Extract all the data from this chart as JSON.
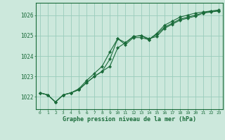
{
  "title": "Graphe pression niveau de la mer (hPa)",
  "background_color": "#cce8dc",
  "plot_bg_color": "#cce8dc",
  "grid_color": "#99ccbb",
  "line_color": "#1a6b3a",
  "xlim": [
    -0.5,
    23.5
  ],
  "ylim": [
    1021.4,
    1026.6
  ],
  "yticks": [
    1022,
    1023,
    1024,
    1025,
    1026
  ],
  "xticks": [
    0,
    1,
    2,
    3,
    4,
    5,
    6,
    7,
    8,
    9,
    10,
    11,
    12,
    13,
    14,
    15,
    16,
    17,
    18,
    19,
    20,
    21,
    22,
    23
  ],
  "series": [
    [
      1022.2,
      1022.1,
      1021.75,
      1022.1,
      1022.2,
      1022.35,
      1022.7,
      1023.0,
      1023.25,
      1023.85,
      1024.85,
      1024.65,
      1024.95,
      1025.0,
      1024.85,
      1024.95,
      1025.35,
      1025.55,
      1025.75,
      1025.85,
      1025.95,
      1026.1,
      1026.2,
      1026.2
    ],
    [
      1022.2,
      1022.1,
      1021.75,
      1022.1,
      1022.2,
      1022.35,
      1022.7,
      1023.0,
      1023.25,
      1023.5,
      1024.4,
      1024.65,
      1024.95,
      1025.0,
      1024.8,
      1025.05,
      1025.4,
      1025.6,
      1025.8,
      1025.9,
      1026.0,
      1026.1,
      1026.15,
      1026.2
    ],
    [
      1022.2,
      1022.1,
      1021.75,
      1022.1,
      1022.2,
      1022.4,
      1022.8,
      1023.15,
      1023.5,
      1024.2,
      1024.85,
      1024.55,
      1024.9,
      1024.9,
      1024.8,
      1025.1,
      1025.5,
      1025.7,
      1025.9,
      1026.0,
      1026.1,
      1026.15,
      1026.2,
      1026.25
    ]
  ]
}
